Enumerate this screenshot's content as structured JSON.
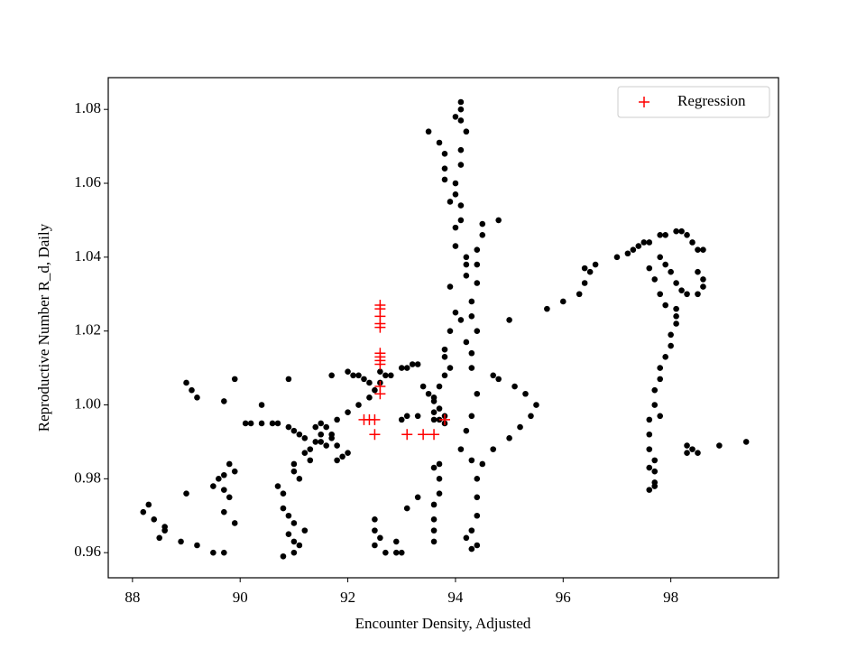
{
  "chart_data": {
    "type": "scatter",
    "xlabel": "Encounter Density, Adjusted",
    "ylabel": "Reproductive Number R_d, Daily",
    "xlim": [
      87.55,
      100.0
    ],
    "ylim": [
      0.9532,
      1.0886
    ],
    "xticks": [
      88,
      90,
      92,
      94,
      96,
      98
    ],
    "yticks": [
      {
        "value": 0.96,
        "label": "0.96"
      },
      {
        "value": 0.98,
        "label": "0.98"
      },
      {
        "value": 1.0,
        "label": "1.00"
      },
      {
        "value": 1.02,
        "label": "1.02"
      },
      {
        "value": 1.04,
        "label": "1.04"
      },
      {
        "value": 1.06,
        "label": "1.06"
      },
      {
        "value": 1.08,
        "label": "1.08"
      }
    ],
    "legend": "upper right",
    "series": [
      {
        "color": "#000000",
        "marker": "dot",
        "x": [
          88.2,
          88.3,
          88.4,
          88.5,
          88.6,
          88.6,
          88.9,
          89.2,
          89.5,
          89.7,
          89.0,
          89.5,
          89.6,
          89.8,
          89.9,
          89.7,
          89.7,
          89.8,
          89.7,
          89.9,
          89.0,
          89.1,
          89.2,
          89.7,
          89.9,
          90.4,
          90.1,
          90.2,
          90.4,
          90.6,
          90.7,
          90.9,
          91.0,
          91.1,
          91.2,
          90.9,
          90.7,
          90.8,
          90.8,
          90.9,
          91.0,
          90.9,
          91.0,
          91.1,
          90.8,
          91.0,
          91.2,
          91.0,
          91.0,
          91.1,
          91.2,
          91.3,
          91.4,
          91.5,
          91.6,
          91.8,
          92.0,
          92.2,
          92.4,
          92.5,
          92.6,
          91.5,
          91.6,
          91.8,
          91.9,
          92.0,
          91.7,
          91.3,
          91.4,
          91.5,
          91.7,
          91.8,
          91.7,
          92.0,
          92.1,
          92.2,
          92.3,
          92.4,
          92.6,
          92.7,
          92.8,
          93.0,
          93.1,
          93.3,
          93.2,
          92.5,
          92.5,
          92.6,
          92.5,
          92.7,
          92.9,
          92.9,
          93.0,
          93.1,
          93.3,
          93.0,
          93.1,
          93.3,
          93.4,
          93.5,
          93.6,
          93.6,
          93.7,
          93.8,
          94.1,
          94.1,
          94.0,
          94.1,
          94.2,
          93.5,
          93.7,
          93.8,
          94.1,
          93.8,
          94.1,
          93.8,
          94.0,
          94.0,
          93.9,
          94.1,
          94.1,
          94.0,
          94.0,
          94.2,
          94.2,
          94.2,
          93.9,
          94.3,
          94.0,
          94.1,
          93.9,
          93.8,
          93.8,
          93.9,
          93.8,
          93.7,
          93.6,
          93.7,
          93.8,
          93.6,
          94.5,
          94.5,
          94.4,
          94.4,
          94.4,
          94.3,
          94.4,
          94.2,
          94.3,
          94.3,
          94.4,
          94.3,
          94.2,
          94.1,
          94.3,
          94.5,
          94.4,
          94.4,
          94.4,
          94.3,
          94.4,
          94.3,
          94.2,
          94.8,
          94.7,
          93.6,
          93.7,
          93.7,
          93.6,
          93.6,
          93.6,
          93.6,
          93.7,
          94.7,
          95.0,
          95.2,
          95.4,
          95.5,
          95.3,
          95.1,
          94.8,
          95.0,
          95.7,
          96.0,
          96.3,
          96.4,
          96.5,
          96.6,
          96.4,
          97.0,
          97.2,
          97.3,
          97.5,
          97.4,
          97.6,
          97.8,
          97.9,
          98.1,
          98.2,
          98.3,
          98.4,
          98.5,
          98.6,
          98.5,
          98.6,
          98.6,
          98.5,
          98.3,
          98.2,
          98.1,
          98.0,
          97.9,
          97.8,
          97.6,
          97.7,
          97.8,
          97.9,
          98.1,
          98.1,
          98.1,
          98.0,
          98.0,
          97.9,
          97.8,
          97.8,
          97.7,
          97.7,
          97.6,
          97.6,
          97.6,
          97.7,
          97.7,
          97.7,
          97.6,
          97.7,
          97.8,
          97.6,
          98.3,
          98.4,
          98.5,
          98.3,
          98.9,
          99.4
        ],
        "values": [
          0.971,
          0.973,
          0.969,
          0.964,
          0.966,
          0.967,
          0.963,
          0.962,
          0.96,
          0.96,
          0.976,
          0.978,
          0.98,
          0.984,
          0.982,
          0.981,
          0.977,
          0.975,
          0.971,
          0.968,
          1.006,
          1.004,
          1.002,
          1.001,
          1.007,
          1.0,
          0.995,
          0.995,
          0.995,
          0.995,
          0.995,
          0.994,
          0.993,
          0.992,
          0.991,
          1.007,
          0.978,
          0.976,
          0.972,
          0.97,
          0.968,
          0.965,
          0.963,
          0.962,
          0.959,
          0.96,
          0.966,
          0.984,
          0.982,
          0.98,
          0.987,
          0.988,
          0.99,
          0.992,
          0.994,
          0.996,
          0.998,
          1.0,
          1.002,
          1.004,
          1.006,
          0.99,
          0.989,
          0.989,
          0.986,
          0.987,
          0.992,
          0.985,
          0.994,
          0.995,
          0.991,
          0.985,
          1.008,
          1.009,
          1.008,
          1.008,
          1.007,
          1.006,
          1.009,
          1.008,
          1.008,
          1.01,
          1.01,
          1.011,
          1.011,
          0.969,
          0.966,
          0.964,
          0.962,
          0.96,
          0.96,
          0.963,
          0.96,
          0.972,
          0.975,
          0.996,
          0.997,
          0.997,
          1.005,
          1.003,
          1.001,
          0.998,
          0.996,
          0.995,
          1.082,
          1.08,
          1.078,
          1.077,
          1.074,
          1.074,
          1.071,
          1.068,
          1.069,
          1.064,
          1.065,
          1.061,
          1.06,
          1.057,
          1.055,
          1.054,
          1.05,
          1.048,
          1.043,
          1.04,
          1.038,
          1.035,
          1.032,
          1.028,
          1.025,
          1.023,
          1.02,
          1.015,
          1.013,
          1.01,
          1.008,
          1.005,
          1.002,
          0.999,
          0.997,
          0.996,
          1.049,
          1.046,
          1.042,
          1.038,
          1.033,
          1.024,
          1.02,
          1.017,
          1.014,
          1.01,
          1.003,
          0.997,
          0.993,
          0.988,
          0.985,
          0.984,
          0.98,
          0.975,
          0.97,
          0.966,
          0.962,
          0.961,
          0.964,
          1.05,
          1.008,
          0.983,
          0.98,
          0.976,
          0.973,
          0.969,
          0.966,
          0.963,
          0.984,
          0.988,
          0.991,
          0.994,
          0.997,
          1.0,
          1.003,
          1.005,
          1.007,
          1.023,
          1.026,
          1.028,
          1.03,
          1.033,
          1.036,
          1.038,
          1.037,
          1.04,
          1.041,
          1.042,
          1.044,
          1.043,
          1.044,
          1.046,
          1.046,
          1.047,
          1.047,
          1.046,
          1.044,
          1.042,
          1.042,
          1.036,
          1.034,
          1.032,
          1.03,
          1.03,
          1.031,
          1.033,
          1.036,
          1.038,
          1.04,
          1.037,
          1.034,
          1.03,
          1.027,
          1.026,
          1.024,
          1.022,
          1.019,
          1.016,
          1.013,
          1.01,
          1.007,
          1.004,
          1.0,
          0.996,
          0.992,
          0.988,
          0.985,
          0.982,
          0.979,
          0.977,
          0.978,
          0.997,
          0.983,
          0.989,
          0.988,
          0.987,
          0.987,
          0.989,
          0.99
        ]
      },
      {
        "name": "Regression",
        "color": "#ff0000",
        "marker": "plus",
        "x": [
          92.6,
          92.6,
          92.6,
          92.6,
          92.6,
          92.6,
          92.6,
          92.6,
          92.6,
          92.6,
          92.6,
          92.3,
          92.4,
          92.5,
          92.5,
          93.1,
          93.4,
          93.6,
          93.8
        ],
        "values": [
          1.027,
          1.026,
          1.024,
          1.022,
          1.021,
          1.014,
          1.013,
          1.012,
          1.011,
          1.005,
          1.003,
          0.996,
          0.996,
          0.996,
          0.992,
          0.992,
          0.992,
          0.992,
          0.996
        ]
      }
    ]
  }
}
